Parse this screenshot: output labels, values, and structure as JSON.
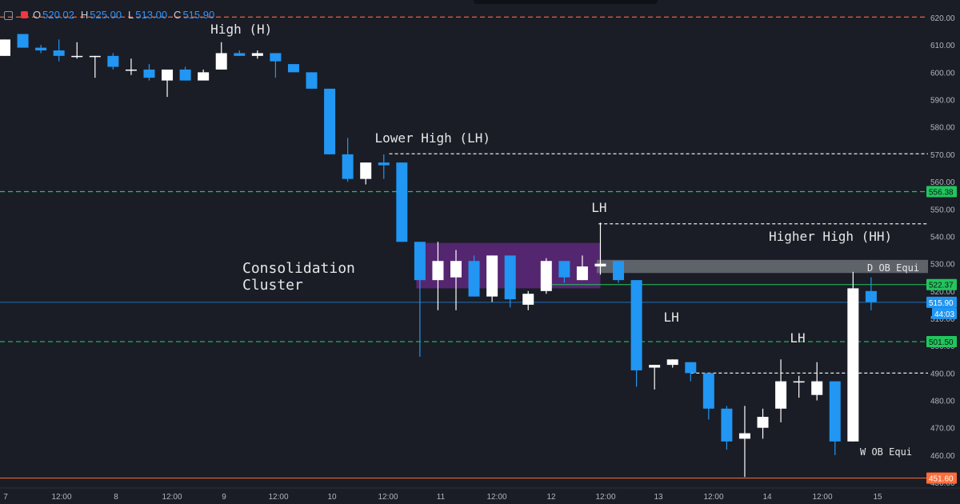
{
  "legend": {
    "open_label": "O",
    "open_value": "520.02",
    "high_label": "H",
    "high_value": "525.00",
    "low_label": "L",
    "low_value": "513.00",
    "close_label": "C",
    "close_value": "515.90"
  },
  "colors": {
    "background": "#1a1d26",
    "bull": "#ffffff",
    "bear": "#2196f3",
    "resistance_line": "#ff6d3a",
    "support_line": "#ff6d3a",
    "level_green": "#22c55e",
    "consolidation_box": "#6a2a8a",
    "ob_zone": "#6b6e76",
    "current_price": "#2196f3"
  },
  "chart_data": {
    "type": "candlestick",
    "y_axis": {
      "range": [
        448,
        624
      ],
      "ticks": [
        620,
        610,
        600,
        590,
        580,
        570,
        560,
        550,
        540,
        530,
        520,
        510,
        500,
        490,
        480,
        470,
        460,
        450
      ],
      "tick_labels": [
        "620.00",
        "610.00",
        "600.00",
        "590.00",
        "580.00",
        "570.00",
        "560.00",
        "550.00",
        "540.00",
        "530.00",
        "520.00",
        "510.00",
        "500.00",
        "490.00",
        "480.00",
        "470.00",
        "460.00",
        "450.00"
      ]
    },
    "x_axis": {
      "tick_labels": [
        "7",
        "12:00",
        "8",
        "12:00",
        "9",
        "12:00",
        "10",
        "12:00",
        "11",
        "12:00",
        "12",
        "12:00",
        "13",
        "12:00",
        "14",
        "12:00",
        "15"
      ]
    },
    "candles": [
      {
        "o": 606,
        "h": 612,
        "l": 606,
        "c": 612
      },
      {
        "o": 614,
        "h": 614,
        "l": 609,
        "c": 609
      },
      {
        "o": 609,
        "h": 610,
        "l": 607,
        "c": 608
      },
      {
        "o": 608,
        "h": 612,
        "l": 604,
        "c": 606
      },
      {
        "o": 606,
        "h": 611,
        "l": 605,
        "c": 606
      },
      {
        "o": 606,
        "h": 606,
        "l": 598,
        "c": 606
      },
      {
        "o": 606,
        "h": 607,
        "l": 601,
        "c": 602
      },
      {
        "o": 601,
        "h": 605,
        "l": 599,
        "c": 601
      },
      {
        "o": 601,
        "h": 603,
        "l": 597,
        "c": 598
      },
      {
        "o": 597,
        "h": 601,
        "l": 591,
        "c": 601
      },
      {
        "o": 601,
        "h": 602,
        "l": 597,
        "c": 597
      },
      {
        "o": 597,
        "h": 601,
        "l": 597,
        "c": 600
      },
      {
        "o": 601,
        "h": 611,
        "l": 601,
        "c": 607
      },
      {
        "o": 607,
        "h": 608,
        "l": 606,
        "c": 606
      },
      {
        "o": 606,
        "h": 608,
        "l": 605,
        "c": 607
      },
      {
        "o": 607,
        "h": 607,
        "l": 598,
        "c": 604
      },
      {
        "o": 603,
        "h": 603,
        "l": 600,
        "c": 600
      },
      {
        "o": 600,
        "h": 600,
        "l": 594,
        "c": 594
      },
      {
        "o": 594,
        "h": 594,
        "l": 570,
        "c": 570
      },
      {
        "o": 570,
        "h": 576,
        "l": 560,
        "c": 561
      },
      {
        "o": 561,
        "h": 567,
        "l": 559,
        "c": 567
      },
      {
        "o": 567,
        "h": 570,
        "l": 561,
        "c": 566
      },
      {
        "o": 567,
        "h": 567,
        "l": 538,
        "c": 538
      },
      {
        "o": 538,
        "h": 538,
        "l": 496,
        "c": 524
      },
      {
        "o": 524,
        "h": 538,
        "l": 513,
        "c": 531
      },
      {
        "o": 525,
        "h": 535,
        "l": 513,
        "c": 531
      },
      {
        "o": 531,
        "h": 533,
        "l": 518,
        "c": 518
      },
      {
        "o": 518,
        "h": 533,
        "l": 516,
        "c": 533
      },
      {
        "o": 533,
        "h": 533,
        "l": 514,
        "c": 517
      },
      {
        "o": 515,
        "h": 520,
        "l": 513,
        "c": 519
      },
      {
        "o": 520,
        "h": 532,
        "l": 519,
        "c": 531
      },
      {
        "o": 531,
        "h": 531,
        "l": 523,
        "c": 525
      },
      {
        "o": 524,
        "h": 533,
        "l": 524,
        "c": 529
      },
      {
        "o": 529,
        "h": 545,
        "l": 526,
        "c": 530
      },
      {
        "o": 531,
        "h": 531,
        "l": 523,
        "c": 524
      },
      {
        "o": 524,
        "h": 524,
        "l": 485,
        "c": 491
      },
      {
        "o": 492,
        "h": 493,
        "l": 484,
        "c": 493
      },
      {
        "o": 493,
        "h": 495,
        "l": 492,
        "c": 495
      },
      {
        "o": 494,
        "h": 494,
        "l": 487,
        "c": 490
      },
      {
        "o": 490,
        "h": 490,
        "l": 473,
        "c": 477
      },
      {
        "o": 477,
        "h": 478,
        "l": 462,
        "c": 465
      },
      {
        "o": 466,
        "h": 478,
        "l": 452,
        "c": 468
      },
      {
        "o": 470,
        "h": 477,
        "l": 466,
        "c": 474
      },
      {
        "o": 477,
        "h": 495,
        "l": 472,
        "c": 487
      },
      {
        "o": 487,
        "h": 489,
        "l": 481,
        "c": 487
      },
      {
        "o": 482,
        "h": 494,
        "l": 480,
        "c": 487
      },
      {
        "o": 487,
        "h": 487,
        "l": 460,
        "c": 465
      },
      {
        "o": 465,
        "h": 527,
        "l": 465,
        "c": 521
      },
      {
        "o": 520,
        "h": 525,
        "l": 513,
        "c": 516
      }
    ],
    "horizontal_levels": [
      {
        "price": 620.2,
        "style": "dashed",
        "color": "#ff6d3a"
      },
      {
        "price": 570.2,
        "style": "dashed",
        "color": "#e8e8e8"
      },
      {
        "price": 556.38,
        "style": "dashed",
        "color": "#22c55e",
        "label": "556.38"
      },
      {
        "price": 544.6,
        "style": "dashed",
        "color": "#e8e8e8"
      },
      {
        "price": 522.37,
        "style": "solid",
        "color": "#22c55e",
        "label": "522.37"
      },
      {
        "price": 515.9,
        "style": "solid",
        "color": "#2196f3",
        "label": "515.90"
      },
      {
        "price": 501.5,
        "style": "dashed",
        "color": "#22c55e",
        "label": "501.50"
      },
      {
        "price": 490.0,
        "style": "dashed",
        "color": "#e8e8e8"
      },
      {
        "price": 451.6,
        "style": "solid",
        "color": "#ff6d3a",
        "label": "451.60"
      }
    ],
    "countdown_label": "44:03",
    "annotations": {
      "high": "High (H)",
      "lower_high": "Lower High (LH)",
      "lh1": "LH",
      "lh2": "LH",
      "lh3": "LH",
      "higher_high": "Higher High (HH)",
      "consolidation_line1": "Consolidation",
      "consolidation_line2": "Cluster",
      "d_ob": "D OB Equi",
      "w_ob": "W OB Equi"
    },
    "zones": [
      {
        "name": "consolidation",
        "price_top": 537.6,
        "price_bottom": 521.0
      },
      {
        "name": "ob",
        "price_top": 531.4,
        "price_bottom": 526.6
      }
    ]
  }
}
